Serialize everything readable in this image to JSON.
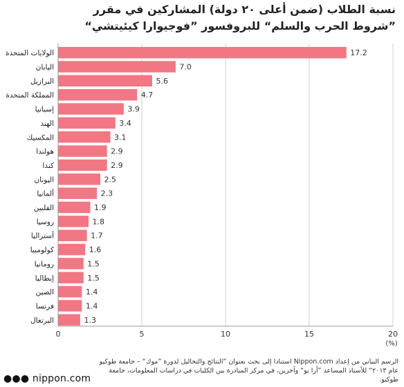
{
  "chart_data": {
    "type": "bar",
    "orientation": "horizontal",
    "title_line1": "نسبة الطلاب (ضمن أعلى ٢٠ دولة) المشاركين في مقرر",
    "title_line2": "”شروط الحرب والسلم“ للبروفسور ”فوجيوارا كيئيتشي“",
    "unit_label": "(%)",
    "categories": [
      "الولايات المتحدة",
      "اليابان",
      "البرازيل",
      "المملكة المتحدة",
      "إسبانيا",
      "الهند",
      "المكسيك",
      "هولندا",
      "كندا",
      "اليونان",
      "ألمانيا",
      "الفلبين",
      "روسيا",
      "أستراليا",
      "كولومبيا",
      "رومانيا",
      "إيطاليا",
      "الصين",
      "فرنسا",
      "البرتغال"
    ],
    "values": [
      17.2,
      7.0,
      5.6,
      4.7,
      3.9,
      3.4,
      3.1,
      2.9,
      2.9,
      2.5,
      2.3,
      1.9,
      1.8,
      1.7,
      1.6,
      1.5,
      1.5,
      1.4,
      1.4,
      1.3
    ],
    "value_labels": [
      "17.2",
      "7.0",
      "5.6",
      "4.7",
      "3.9",
      "3.4",
      "3.1",
      "2.9",
      "2.9",
      "2.5",
      "2.3",
      "1.9",
      "1.8",
      "1.7",
      "1.6",
      "1.5",
      "1.5",
      "1.4",
      "1.4",
      "1.3"
    ],
    "xlim": [
      0,
      20
    ],
    "xticks": [
      0,
      5,
      10,
      15,
      20
    ],
    "grid": true,
    "bar_color": "#f27784",
    "grid_color": "#cccccc"
  },
  "source_text": "الرسم البياني من إعداد Nippon.com استنادا إلى بحث بعنوان ”النتائج والتحاليل لدورة ”موك“ – جامعة طوكيو عام ٢٠١٣“ للأستاذ المساعد ”أرا يو“ وآخرين، في مركز المبادرة بين الكليات في دراسات المعلومات، جامعة طوكيو.",
  "logo": {
    "dots": "●●●",
    "text": "nippon.com"
  }
}
